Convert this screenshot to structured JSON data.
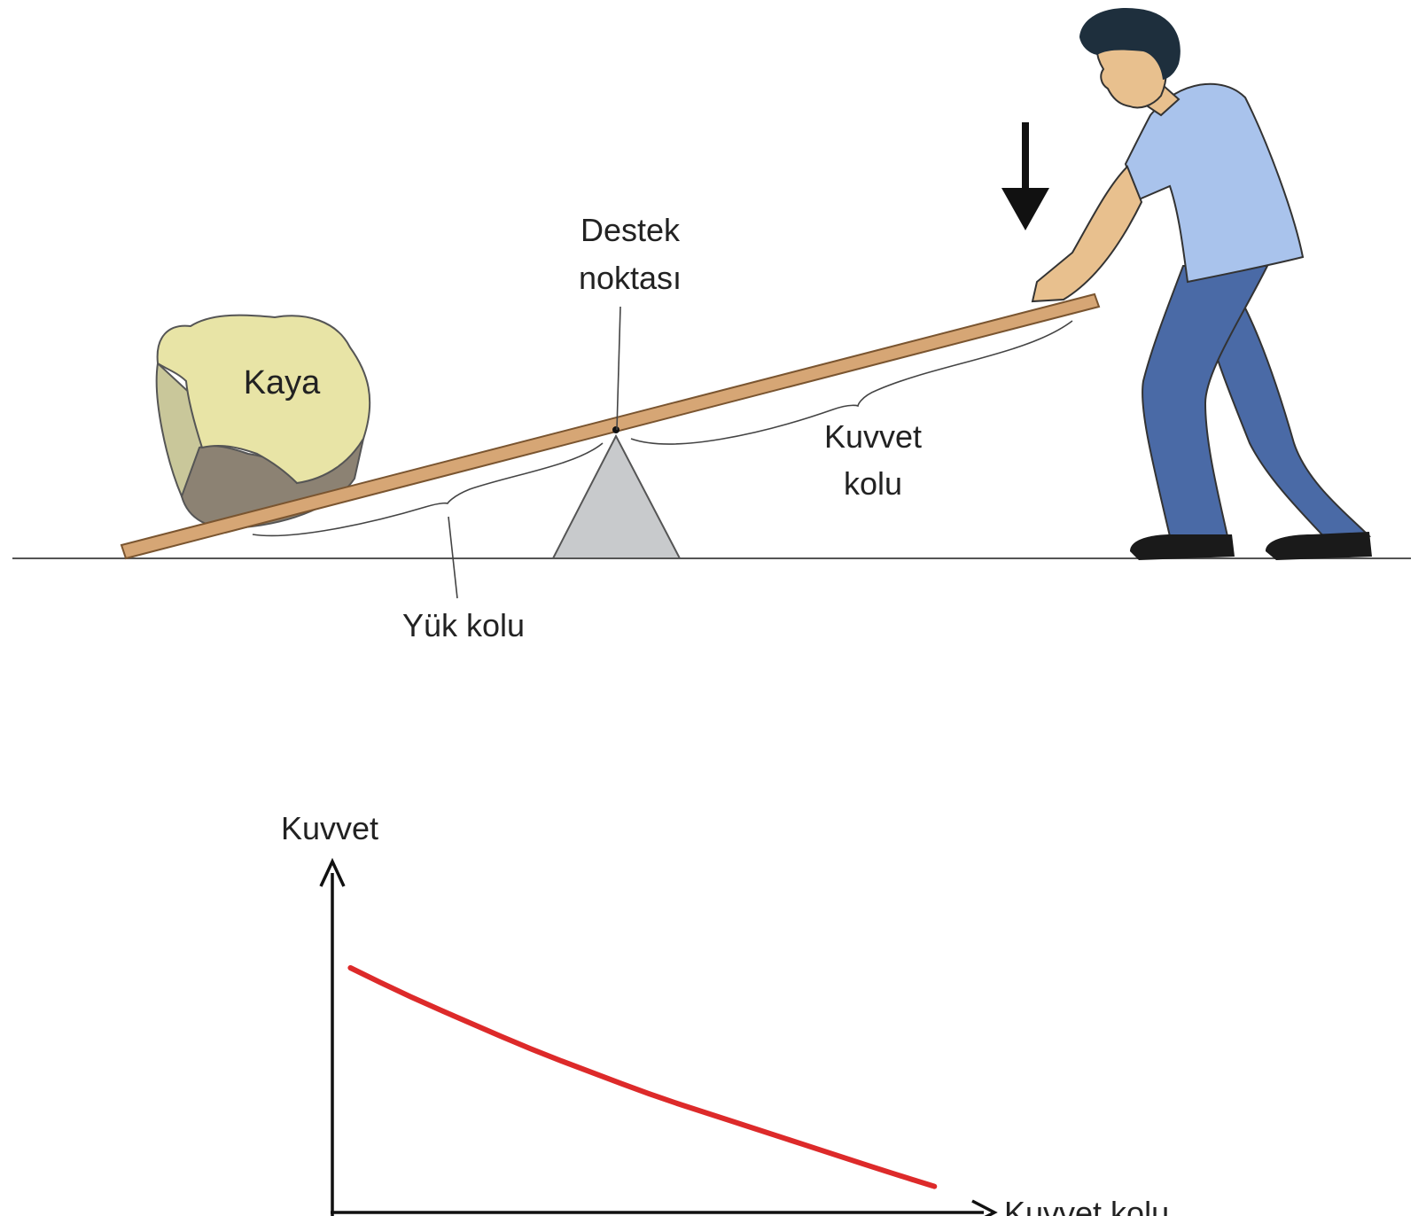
{
  "diagram": {
    "labels": {
      "rock": "Kaya",
      "fulcrum_line1": "Destek",
      "fulcrum_line2": "noktası",
      "effort_arm_line1": "Kuvvet",
      "effort_arm_line2": "kolu",
      "load_arm": "Yük kolu"
    },
    "colors": {
      "rock_light": "#e8e4a6",
      "rock_side": "#c9c79a",
      "rock_dark": "#8c8273",
      "plank": "#d6a675",
      "plank_edge": "#7a5530",
      "fulcrum": "#c8cacc",
      "shirt": "#a9c3ec",
      "pants": "#4a6aa6",
      "skin": "#e8c08e",
      "hair": "#1e2f3d",
      "shoe": "#1a1a1a",
      "line": "#333333"
    },
    "icons": [
      "rock-icon",
      "fulcrum-icon",
      "person-icon",
      "force-arrow-icon"
    ]
  },
  "chart_data": {
    "type": "line",
    "title": "",
    "ylabel": "Kuvvet",
    "xlabel": "Kuvvet kolu",
    "show_ticks": false,
    "grid": false,
    "xlim": [
      0,
      10
    ],
    "ylim": [
      0,
      10
    ],
    "series": [
      {
        "name": "Kuvvet",
        "color": "#dd2a2a",
        "x": [
          0.3,
          1.3,
          2.3,
          3.3,
          4.3,
          5.3,
          6.3,
          7.3,
          8.3,
          9.3,
          10
        ],
        "y": [
          7.5,
          6.6,
          5.8,
          5.0,
          4.3,
          3.6,
          3.0,
          2.4,
          1.8,
          1.2,
          0.8
        ]
      }
    ]
  }
}
